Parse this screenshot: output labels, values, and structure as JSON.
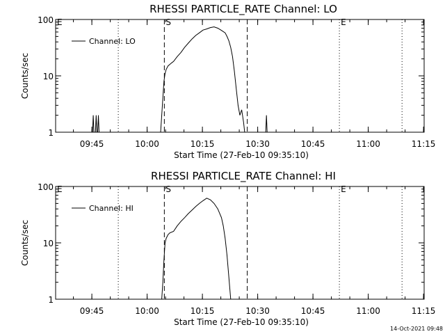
{
  "chart_data": [
    {
      "type": "line",
      "title": "RHESSI PARTICLE_RATE Channel: LO",
      "xlabel": "Start Time (27-Feb-10 09:35:10)",
      "ylabel": "Counts/sec",
      "yscale": "log",
      "ylim": [
        1,
        100
      ],
      "xlim_min_from_start": [
        0,
        100
      ],
      "yticks": [
        {
          "v": 1,
          "label": "1"
        },
        {
          "v": 10,
          "label": "10"
        },
        {
          "v": 100,
          "label": "100"
        }
      ],
      "xticks": [
        {
          "t": 9.83,
          "label": "09:45"
        },
        {
          "t": 24.83,
          "label": "10:00"
        },
        {
          "t": 39.83,
          "label": "10:15"
        },
        {
          "t": 54.83,
          "label": "10:30"
        },
        {
          "t": 69.83,
          "label": "10:45"
        },
        {
          "t": 84.83,
          "label": "11:00"
        },
        {
          "t": 99.83,
          "label": "11:15"
        }
      ],
      "legend": "Channel: LO",
      "legend_position": "top-left",
      "markers": [
        {
          "t": 0,
          "label": "E",
          "style": "dotted"
        },
        {
          "t": 17.0,
          "label": "",
          "style": "dotted"
        },
        {
          "t": 29.5,
          "label": "S",
          "style": "dashed"
        },
        {
          "t": 52.0,
          "label": "",
          "style": "dashed"
        },
        {
          "t": 77.0,
          "label": "E",
          "style": "dotted"
        },
        {
          "t": 94.0,
          "label": "",
          "style": "dotted"
        }
      ],
      "spikes": [
        {
          "t": 10.2,
          "peak": 2
        },
        {
          "t": 11.0,
          "peak": 2
        },
        {
          "t": 11.6,
          "peak": 2
        },
        {
          "t": 57.2,
          "peak": 2
        }
      ],
      "series": [
        {
          "name": "Channel: LO",
          "x": [
            28.5,
            28.8,
            29.1,
            29.4,
            29.7,
            30.0,
            30.5,
            31.0,
            31.5,
            32.0,
            33.0,
            34.0,
            35.0,
            36.0,
            37.0,
            38.0,
            39.0,
            40.0,
            41.0,
            42.0,
            43.0,
            44.0,
            45.0,
            46.0,
            46.5,
            47.0,
            47.5,
            48.0,
            48.5,
            49.0,
            49.5,
            50.0,
            50.5,
            51.0,
            51.3
          ],
          "y": [
            1,
            2,
            4,
            8,
            11,
            13,
            15,
            16,
            17,
            18,
            22,
            26,
            32,
            38,
            45,
            52,
            58,
            65,
            68,
            72,
            74,
            70,
            64,
            58,
            50,
            42,
            32,
            22,
            12,
            6,
            3,
            2,
            2.5,
            1.5,
            1
          ]
        }
      ]
    },
    {
      "type": "line",
      "title": "RHESSI PARTICLE_RATE Channel: HI",
      "xlabel": "Start Time (27-Feb-10 09:35:10)",
      "ylabel": "Counts/sec",
      "yscale": "log",
      "ylim": [
        1,
        100
      ],
      "xlim_min_from_start": [
        0,
        100
      ],
      "yticks": [
        {
          "v": 1,
          "label": "1"
        },
        {
          "v": 10,
          "label": "10"
        },
        {
          "v": 100,
          "label": "100"
        }
      ],
      "xticks": [
        {
          "t": 9.83,
          "label": "09:45"
        },
        {
          "t": 24.83,
          "label": "10:00"
        },
        {
          "t": 39.83,
          "label": "10:15"
        },
        {
          "t": 54.83,
          "label": "10:30"
        },
        {
          "t": 69.83,
          "label": "10:45"
        },
        {
          "t": 84.83,
          "label": "11:00"
        },
        {
          "t": 99.83,
          "label": "11:15"
        }
      ],
      "legend": "Channel: HI",
      "legend_position": "top-left",
      "markers": [
        {
          "t": 0,
          "label": "E",
          "style": "dotted"
        },
        {
          "t": 17.0,
          "label": "",
          "style": "dotted"
        },
        {
          "t": 29.5,
          "label": "S",
          "style": "dashed"
        },
        {
          "t": 52.0,
          "label": "",
          "style": "dashed"
        },
        {
          "t": 77.0,
          "label": "E",
          "style": "dotted"
        },
        {
          "t": 94.0,
          "label": "",
          "style": "dotted"
        }
      ],
      "spikes": [],
      "series": [
        {
          "name": "Channel: HI",
          "x": [
            28.8,
            29.1,
            29.4,
            29.7,
            30.0,
            30.5,
            31.0,
            32.0,
            33.0,
            34.0,
            35.0,
            36.0,
            37.0,
            38.0,
            39.0,
            40.0,
            41.0,
            42.0,
            43.0,
            44.0,
            45.0,
            45.5,
            46.0,
            46.5,
            47.0,
            47.5
          ],
          "y": [
            1,
            2,
            5,
            10,
            12,
            14,
            15,
            16,
            20,
            24,
            28,
            33,
            38,
            44,
            50,
            56,
            62,
            58,
            50,
            40,
            28,
            20,
            12,
            6,
            2.5,
            1
          ]
        }
      ]
    }
  ],
  "timestamp": "14-Oct-2021 09:48"
}
